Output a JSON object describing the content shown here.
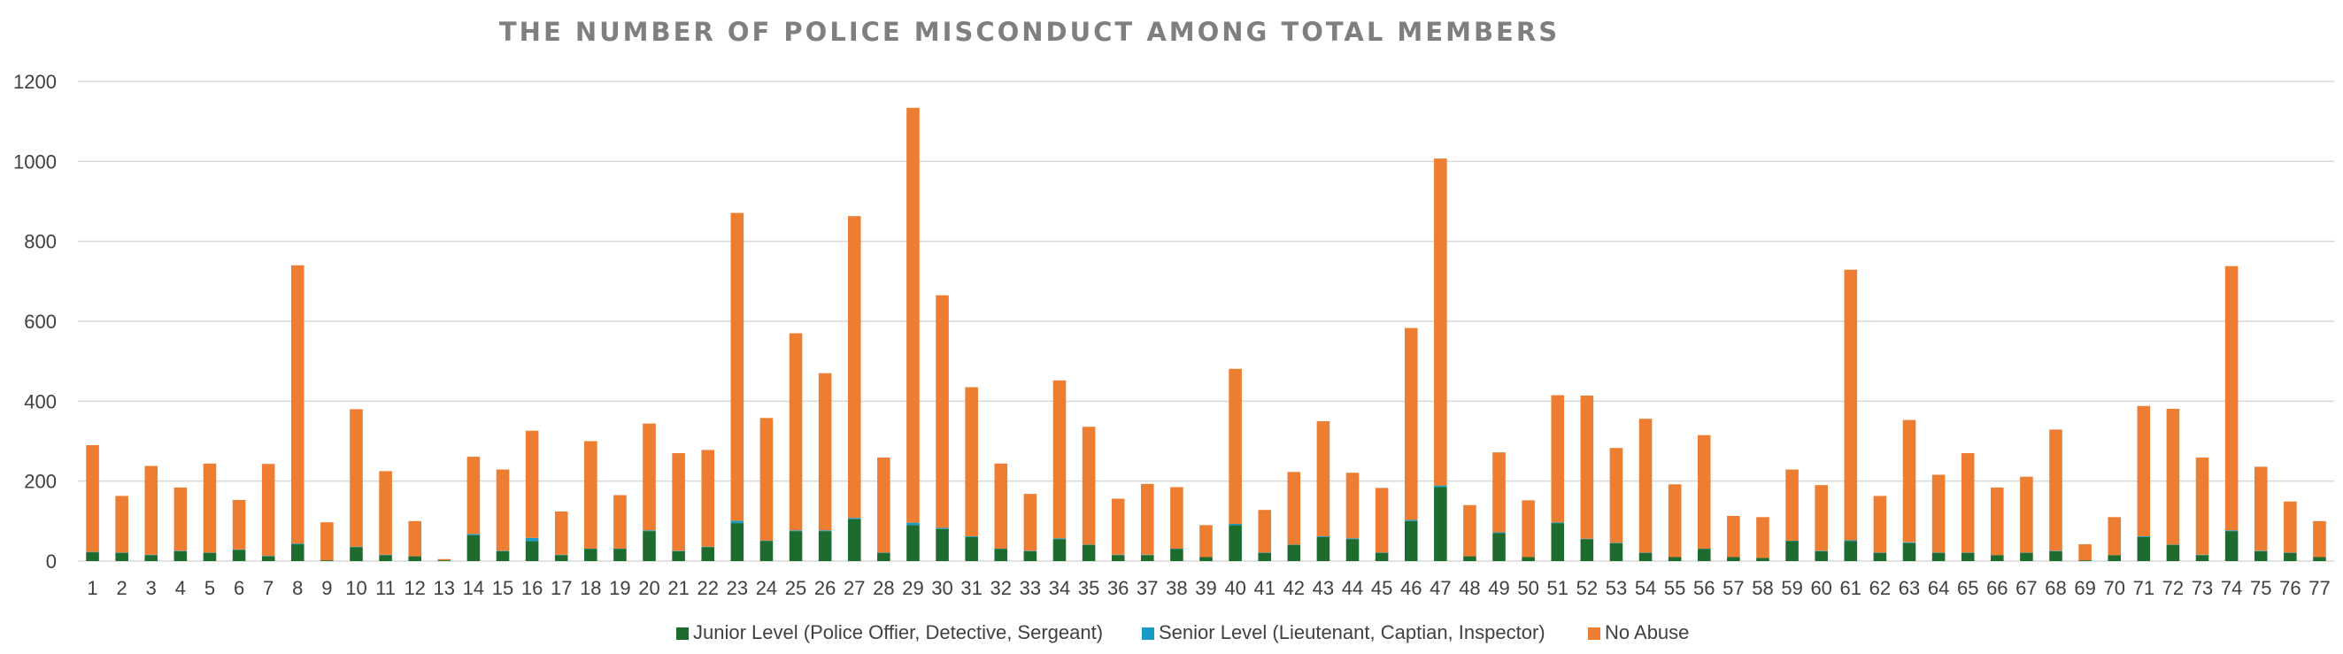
{
  "chart_data": {
    "type": "bar",
    "stacked": true,
    "title": "THE NUMBER OF POLICE MISCONDUCT AMONG TOTAL MEMBERS",
    "xlabel": "",
    "ylabel": "",
    "ylim": [
      0,
      1200
    ],
    "yticks": [
      0,
      200,
      400,
      600,
      800,
      1000,
      1200
    ],
    "grid": true,
    "legend_position": "bottom",
    "categories": [
      "1",
      "2",
      "3",
      "4",
      "5",
      "6",
      "7",
      "8",
      "9",
      "10",
      "11",
      "12",
      "13",
      "14",
      "15",
      "16",
      "17",
      "18",
      "19",
      "20",
      "21",
      "22",
      "23",
      "24",
      "25",
      "26",
      "27",
      "28",
      "29",
      "30",
      "31",
      "32",
      "33",
      "34",
      "35",
      "36",
      "37",
      "38",
      "39",
      "40",
      "41",
      "42",
      "43",
      "44",
      "45",
      "46",
      "47",
      "48",
      "49",
      "50",
      "51",
      "52",
      "53",
      "54",
      "55",
      "56",
      "57",
      "58",
      "59",
      "60",
      "61",
      "62",
      "63",
      "64",
      "65",
      "66",
      "67",
      "68",
      "69",
      "70",
      "71",
      "72",
      "73",
      "74",
      "75",
      "76",
      "77"
    ],
    "series": [
      {
        "name": "Junior Level (Police Offier, Detective, Sergeant)",
        "color": "#1e6b2e",
        "values": [
          22,
          20,
          15,
          25,
          20,
          28,
          12,
          42,
          2,
          35,
          15,
          12,
          2,
          65,
          25,
          50,
          15,
          30,
          30,
          75,
          25,
          35,
          95,
          50,
          75,
          75,
          105,
          20,
          90,
          80,
          60,
          30,
          25,
          55,
          40,
          15,
          15,
          30,
          10,
          90,
          20,
          40,
          60,
          55,
          20,
          100,
          185,
          12,
          70,
          10,
          95,
          55,
          45,
          20,
          10,
          30,
          10,
          8,
          50,
          25,
          50,
          20,
          45,
          20,
          20,
          15,
          20,
          25,
          2,
          15,
          60,
          40,
          15,
          75,
          25,
          20,
          10
        ]
      },
      {
        "name": "Senior Level (Lieutenant, Captian, Inspector)",
        "color": "#1a9bc7",
        "values": [
          1,
          1,
          1,
          1,
          1,
          1,
          1,
          2,
          0,
          1,
          1,
          0,
          0,
          3,
          1,
          8,
          1,
          1,
          1,
          2,
          1,
          1,
          6,
          1,
          2,
          2,
          3,
          1,
          6,
          3,
          2,
          1,
          1,
          2,
          1,
          1,
          1,
          1,
          0,
          3,
          1,
          1,
          2,
          2,
          1,
          3,
          4,
          0,
          2,
          0,
          2,
          1,
          1,
          1,
          0,
          1,
          0,
          0,
          1,
          1,
          2,
          1,
          2,
          1,
          1,
          0,
          1,
          1,
          0,
          0,
          2,
          1,
          1,
          2,
          1,
          1,
          0
        ]
      },
      {
        "name": "No Abuse",
        "color": "#ed7d31",
        "values": [
          267,
          142,
          222,
          158,
          223,
          124,
          230,
          696,
          95,
          344,
          209,
          88,
          3,
          193,
          203,
          268,
          108,
          269,
          134,
          267,
          244,
          242,
          770,
          307,
          493,
          393,
          755,
          238,
          1038,
          582,
          373,
          213,
          142,
          395,
          295,
          140,
          177,
          154,
          80,
          388,
          107,
          182,
          288,
          164,
          162,
          480,
          818,
          128,
          200,
          142,
          318,
          358,
          237,
          335,
          182,
          284,
          103,
          102,
          178,
          164,
          677,
          142,
          306,
          195,
          249,
          169,
          190,
          303,
          40,
          95,
          326,
          340,
          243,
          661,
          210,
          128,
          90
        ]
      }
    ]
  }
}
